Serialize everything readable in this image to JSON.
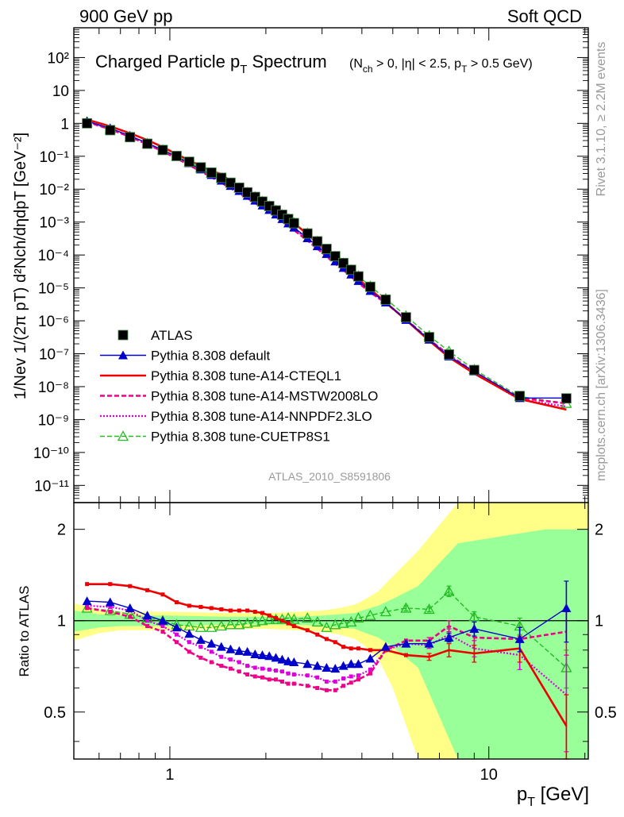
{
  "header": {
    "left": "900 GeV pp",
    "right": "Soft QCD"
  },
  "side": {
    "rivet": "Rivet 3.1.10, ≥ 2.2M events",
    "mcplots": "mcplots.cern.ch [arXiv:1306.3436]"
  },
  "colors": {
    "data": "#000000",
    "default": "#0000cc",
    "cteql1": "#ee0000",
    "mstw": "#ee0088",
    "nnpdf": "#dd00dd",
    "cuetp8s1": "#22bb22",
    "band_inner": "#99ff99",
    "band_outer": "#ffff88"
  },
  "chart_data": [
    {
      "type": "line",
      "title": "Charged Particle pT Spectrum",
      "title_main": "Charged Particle p",
      "title_sub": "T",
      "title_tail": " Spectrum",
      "title_cuts": "(N",
      "title_cuts_sub1": "ch",
      "title_cuts_mid": " > 0, |η| < 2.5, p",
      "title_cuts_sub2": "T",
      "title_cuts_end": " > 0.5 GeV)",
      "analysis_id": "ATLAS_2010_S8591806",
      "ylabel": "1/Nev 1/(2π pT) d²Nch/dηdpT [GeV⁻²]",
      "xscale": "log",
      "yscale": "log",
      "xlim": [
        0.5,
        20.5
      ],
      "ylim": [
        3e-12,
        800
      ],
      "y_ticks": [
        "10⁻¹¹",
        "10⁻¹⁰",
        "10⁻⁹",
        "10⁻⁸",
        "10⁻⁷",
        "10⁻⁶",
        "10⁻⁵",
        "10⁻⁴",
        "10⁻³",
        "10⁻²",
        "10⁻¹",
        "1",
        "10",
        "10²"
      ],
      "legend_position": "bottom-left",
      "x": [
        0.55,
        0.65,
        0.75,
        0.85,
        0.95,
        1.05,
        1.15,
        1.25,
        1.35,
        1.45,
        1.55,
        1.65,
        1.75,
        1.85,
        1.95,
        2.05,
        2.15,
        2.25,
        2.35,
        2.45,
        2.7,
        2.9,
        3.1,
        3.3,
        3.5,
        3.7,
        3.9,
        4.25,
        4.75,
        5.5,
        6.5,
        7.5,
        9.0,
        12.5,
        17.5
      ],
      "series": [
        {
          "name": "ATLAS",
          "style": "data",
          "values": [
            1.0,
            0.62,
            0.38,
            0.24,
            0.155,
            0.102,
            0.068,
            0.046,
            0.032,
            0.0222,
            0.0157,
            0.0111,
            0.008,
            0.0058,
            0.0042,
            0.00307,
            0.00226,
            0.00167,
            0.00124,
            0.00093,
            0.00045,
            0.00026,
            0.000153,
            9.2e-05,
            5.7e-05,
            3.55e-05,
            2.24e-05,
            1.08e-05,
            4.4e-06,
            1.28e-06,
            3.2e-07,
            9.5e-08,
            3.2e-08,
            5.2e-09,
            4.4e-09
          ]
        },
        {
          "name": "Pythia 8.308 default",
          "style": "default",
          "values": [
            1.16,
            0.71,
            0.42,
            0.25,
            0.155,
            0.097,
            0.0615,
            0.0398,
            0.0269,
            0.0182,
            0.0126,
            0.0088,
            0.0063,
            0.0045,
            0.0032,
            0.00234,
            0.0017,
            0.00124,
            0.00091,
            0.00068,
            0.000323,
            0.000185,
            0.000107,
            6.4e-05,
            4.05e-05,
            2.55e-05,
            1.62e-05,
            8.1e-06,
            3.62e-06,
            1.07e-06,
            2.68e-07,
            8.3e-08,
            2.9e-08,
            4.5e-09,
            4.5e-09
          ]
        },
        {
          "name": "Pythia 8.308 tune-A14-CTEQL1",
          "style": "cteql1",
          "values": [
            1.3,
            0.81,
            0.5,
            0.31,
            0.19,
            0.115,
            0.0755,
            0.0511,
            0.0352,
            0.029,
            0.0172,
            0.0122,
            0.0088,
            0.0064,
            0.00469,
            0.00344,
            0.00253,
            0.0018,
            0.0013,
            0.00094,
            0.00042,
            0.000232,
            0.000136,
            7.6e-05,
            4.8e-05,
            2.95e-05,
            1.85e-05,
            9e-06,
            3.65e-06,
            1.06e-06,
            2.5e-07,
            7.8e-08,
            2.5e-08,
            4.2e-09,
            2e-09
          ]
        },
        {
          "name": "Pythia 8.308 tune-A14-MSTW2008LO",
          "style": "mstw",
          "values": [
            1.1,
            0.66,
            0.39,
            0.23,
            0.142,
            0.086,
            0.054,
            0.0347,
            0.0232,
            0.0156,
            0.0108,
            0.0075,
            0.0053,
            0.00379,
            0.00273,
            0.00196,
            0.00145,
            0.00105,
            0.00077,
            0.00057,
            0.000275,
            0.000156,
            9e-05,
            5.4e-05,
            3.48e-05,
            2.22e-05,
            1.43e-05,
            7.3e-06,
            3.49e-06,
            1.1e-06,
            2.7e-07,
            9.1e-08,
            2.8e-08,
            4.5e-09,
            3.1e-09
          ]
        },
        {
          "name": "Pythia 8.308 tune-A14-NNPDF2.3LO",
          "style": "nnpdf",
          "values": [
            1.12,
            0.68,
            0.41,
            0.24,
            0.149,
            0.092,
            0.058,
            0.0377,
            0.0254,
            0.0169,
            0.0117,
            0.0081,
            0.0057,
            0.0041,
            0.00294,
            0.00212,
            0.00156,
            0.00113,
            0.00083,
            0.00062,
            0.000298,
            0.000168,
            9.7e-05,
            5.8e-05,
            3.68e-05,
            2.32e-05,
            1.48e-05,
            7.5e-06,
            3.52e-06,
            1.08e-06,
            2.65e-07,
            8.5e-08,
            2.6e-08,
            4e-09,
            2.5e-09
          ]
        },
        {
          "name": "Pythia 8.308 tune-CUETP8S1",
          "style": "cuetp8s1",
          "values": [
            1.1,
            0.67,
            0.4,
            0.245,
            0.155,
            0.099,
            0.065,
            0.0437,
            0.0305,
            0.0213,
            0.0152,
            0.0108,
            0.0079,
            0.0058,
            0.0042,
            0.0031,
            0.00228,
            0.00168,
            0.00126,
            0.00094,
            0.000458,
            0.000259,
            0.000146,
            8.9e-05,
            5.6e-05,
            3.53e-05,
            2.29e-05,
            1.12e-05,
            4.7e-06,
            1.41e-06,
            3.5e-07,
            1.19e-07,
            3.3e-08,
            5e-09,
            3.1e-09
          ]
        }
      ]
    },
    {
      "type": "line",
      "ylabel": "Ratio to ATLAS",
      "xlabel": "pT [GeV]",
      "xlabel_main": "p",
      "xlabel_sub": "T",
      "xlabel_unit": " [GeV]",
      "xscale": "log",
      "yscale": "log",
      "xlim": [
        0.5,
        20.5
      ],
      "ylim": [
        0.35,
        2.45
      ],
      "x_ticks": [
        "1",
        "10"
      ],
      "y_ticks": [
        "0.5",
        "1",
        "2"
      ],
      "x": [
        0.55,
        0.65,
        0.75,
        0.85,
        0.95,
        1.05,
        1.15,
        1.25,
        1.35,
        1.45,
        1.55,
        1.65,
        1.75,
        1.85,
        1.95,
        2.05,
        2.15,
        2.25,
        2.35,
        2.45,
        2.7,
        2.9,
        3.1,
        3.3,
        3.5,
        3.7,
        3.9,
        4.25,
        4.75,
        5.5,
        6.5,
        7.5,
        9.0,
        12.5,
        17.5
      ],
      "band_inner": [
        [
          0.5,
          0.08
        ],
        [
          0.6,
          0.05
        ],
        [
          0.7,
          0.04
        ],
        [
          1.0,
          0.04
        ],
        [
          1.5,
          0.03
        ],
        [
          2.0,
          0.03
        ],
        [
          2.5,
          0.03
        ],
        [
          3.0,
          0.04
        ],
        [
          3.4,
          0.05
        ],
        [
          3.8,
          0.06
        ],
        [
          4.0,
          0.08
        ],
        [
          4.5,
          0.12
        ],
        [
          5.0,
          0.18
        ],
        [
          6.0,
          0.3
        ],
        [
          8.0,
          0.8
        ],
        [
          15.0,
          1.0
        ],
        [
          20.5,
          1.0
        ]
      ],
      "band_outer": [
        [
          0.5,
          0.14
        ],
        [
          0.6,
          0.09
        ],
        [
          0.7,
          0.07
        ],
        [
          1.0,
          0.07
        ],
        [
          1.5,
          0.06
        ],
        [
          2.0,
          0.06
        ],
        [
          2.5,
          0.07
        ],
        [
          3.0,
          0.08
        ],
        [
          3.4,
          0.1
        ],
        [
          3.8,
          0.13
        ],
        [
          4.0,
          0.16
        ],
        [
          4.5,
          0.25
        ],
        [
          5.0,
          0.4
        ],
        [
          6.0,
          0.7
        ],
        [
          8.0,
          1.5
        ],
        [
          15.0,
          1.6
        ],
        [
          20.5,
          1.6
        ]
      ],
      "series": [
        {
          "name": "Pythia 8.308 default",
          "style": "default",
          "values": [
            1.16,
            1.15,
            1.1,
            1.04,
            1.0,
            0.95,
            0.905,
            0.865,
            0.84,
            0.82,
            0.805,
            0.795,
            0.79,
            0.775,
            0.77,
            0.765,
            0.755,
            0.745,
            0.735,
            0.73,
            0.72,
            0.71,
            0.7,
            0.695,
            0.71,
            0.72,
            0.72,
            0.75,
            0.82,
            0.84,
            0.84,
            0.88,
            0.94,
            0.87,
            1.1
          ],
          "errors": [
            0.01,
            0.01,
            0.01,
            0.01,
            0.01,
            0.01,
            0.01,
            0.01,
            0.01,
            0.01,
            0.01,
            0.01,
            0.01,
            0.01,
            0.01,
            0.01,
            0.01,
            0.01,
            0.01,
            0.01,
            0.01,
            0.01,
            0.01,
            0.01,
            0.01,
            0.01,
            0.01,
            0.01,
            0.01,
            0.01,
            0.02,
            0.03,
            0.05,
            0.08,
            0.25
          ]
        },
        {
          "name": "Pythia 8.308 tune-A14-CTEQL1",
          "style": "cteql1",
          "values": [
            1.32,
            1.32,
            1.3,
            1.26,
            1.22,
            1.15,
            1.12,
            1.11,
            1.1,
            1.09,
            1.08,
            1.08,
            1.08,
            1.07,
            1.06,
            1.04,
            1.02,
            1.0,
            0.98,
            0.96,
            0.93,
            0.9,
            0.87,
            0.85,
            0.82,
            0.81,
            0.81,
            0.8,
            0.8,
            0.77,
            0.76,
            0.8,
            0.78,
            0.81,
            0.45
          ],
          "errors": [
            0.01,
            0.01,
            0.01,
            0.01,
            0.01,
            0.01,
            0.01,
            0.01,
            0.01,
            0.01,
            0.01,
            0.01,
            0.01,
            0.01,
            0.01,
            0.01,
            0.01,
            0.01,
            0.01,
            0.01,
            0.01,
            0.01,
            0.01,
            0.01,
            0.01,
            0.01,
            0.01,
            0.01,
            0.01,
            0.01,
            0.02,
            0.04,
            0.05,
            0.08,
            0.12
          ]
        },
        {
          "name": "Pythia 8.308 tune-A14-MSTW2008LO",
          "style": "mstw",
          "values": [
            1.1,
            1.07,
            1.03,
            0.96,
            0.92,
            0.85,
            0.79,
            0.755,
            0.73,
            0.71,
            0.695,
            0.68,
            0.665,
            0.655,
            0.65,
            0.64,
            0.64,
            0.63,
            0.62,
            0.62,
            0.61,
            0.6,
            0.59,
            0.59,
            0.61,
            0.625,
            0.64,
            0.67,
            0.8,
            0.86,
            0.86,
            0.96,
            0.88,
            0.87,
            0.92
          ],
          "errors": [
            0.01,
            0.01,
            0.01,
            0.01,
            0.01,
            0.01,
            0.01,
            0.01,
            0.01,
            0.01,
            0.01,
            0.01,
            0.01,
            0.01,
            0.01,
            0.01,
            0.01,
            0.01,
            0.01,
            0.01,
            0.01,
            0.01,
            0.01,
            0.01,
            0.01,
            0.01,
            0.01,
            0.01,
            0.01,
            0.01,
            0.02,
            0.04,
            0.05,
            0.08,
            0.15
          ]
        },
        {
          "name": "Pythia 8.308 tune-A14-NNPDF2.3LO",
          "style": "nnpdf",
          "values": [
            1.12,
            1.11,
            1.08,
            1.0,
            0.96,
            0.9,
            0.85,
            0.82,
            0.79,
            0.76,
            0.745,
            0.73,
            0.71,
            0.7,
            0.695,
            0.69,
            0.685,
            0.68,
            0.67,
            0.665,
            0.66,
            0.65,
            0.63,
            0.63,
            0.645,
            0.655,
            0.66,
            0.69,
            0.8,
            0.84,
            0.83,
            0.9,
            0.81,
            0.77,
            0.57
          ],
          "errors": [
            0.01,
            0.01,
            0.01,
            0.01,
            0.01,
            0.01,
            0.01,
            0.01,
            0.01,
            0.01,
            0.01,
            0.01,
            0.01,
            0.01,
            0.01,
            0.01,
            0.01,
            0.01,
            0.01,
            0.01,
            0.01,
            0.01,
            0.01,
            0.01,
            0.01,
            0.01,
            0.01,
            0.01,
            0.01,
            0.01,
            0.02,
            0.04,
            0.05,
            0.08,
            0.2
          ]
        },
        {
          "name": "Pythia 8.308 tune-CUETP8S1",
          "style": "cuetp8s1",
          "values": [
            1.1,
            1.08,
            1.05,
            1.02,
            1.0,
            0.97,
            0.96,
            0.95,
            0.95,
            0.96,
            0.97,
            0.97,
            0.98,
            0.99,
            1.0,
            1.01,
            1.01,
            1.01,
            1.02,
            1.01,
            1.02,
            0.99,
            0.95,
            0.97,
            0.98,
            0.99,
            1.02,
            1.04,
            1.07,
            1.1,
            1.09,
            1.25,
            1.03,
            0.96,
            0.7
          ],
          "errors": [
            0.01,
            0.01,
            0.01,
            0.01,
            0.01,
            0.01,
            0.01,
            0.01,
            0.01,
            0.01,
            0.01,
            0.01,
            0.01,
            0.01,
            0.01,
            0.01,
            0.01,
            0.01,
            0.01,
            0.01,
            0.01,
            0.01,
            0.01,
            0.01,
            0.01,
            0.01,
            0.01,
            0.01,
            0.01,
            0.02,
            0.02,
            0.05,
            0.04,
            0.06,
            0.1
          ]
        }
      ]
    }
  ],
  "legend": [
    {
      "label": "ATLAS",
      "style": "data"
    },
    {
      "label": "Pythia 8.308 default",
      "style": "default"
    },
    {
      "label": "Pythia 8.308 tune-A14-CTEQL1",
      "style": "cteql1"
    },
    {
      "label": "Pythia 8.308 tune-A14-MSTW2008LO",
      "style": "mstw"
    },
    {
      "label": "Pythia 8.308 tune-A14-NNPDF2.3LO",
      "style": "nnpdf"
    },
    {
      "label": "Pythia 8.308 tune-CUETP8S1",
      "style": "cuetp8s1"
    }
  ]
}
